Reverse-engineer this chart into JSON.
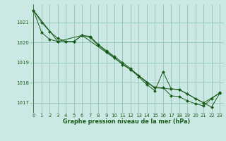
{
  "bg_color": "#cce8e4",
  "grid_color": "#99ccbb",
  "line_color": "#1a5c1a",
  "marker_color": "#1a5c1a",
  "xlabel": "Graphe pression niveau de la mer (hPa)",
  "xlabel_color": "#1a5c1a",
  "tick_color": "#1a5c1a",
  "ylim": [
    1016.5,
    1021.9
  ],
  "xlim": [
    -0.5,
    23.5
  ],
  "yticks": [
    1017,
    1018,
    1019,
    1020,
    1021
  ],
  "xticks": [
    0,
    1,
    2,
    3,
    4,
    5,
    6,
    7,
    8,
    9,
    10,
    11,
    12,
    13,
    14,
    15,
    16,
    17,
    18,
    19,
    20,
    21,
    22,
    23
  ],
  "series1_x": [
    0,
    1,
    2,
    3,
    4,
    5,
    6,
    7,
    8,
    9,
    10,
    11,
    12,
    13,
    14,
    15,
    16,
    17,
    18,
    19,
    20,
    21,
    22,
    23
  ],
  "series1_y": [
    1021.6,
    1021.0,
    1020.55,
    1020.2,
    1020.05,
    1020.05,
    1020.35,
    1020.3,
    1019.9,
    1019.6,
    1019.3,
    1019.0,
    1018.7,
    1018.35,
    1018.0,
    1017.75,
    1017.75,
    1017.35,
    1017.3,
    1017.1,
    1016.95,
    1016.85,
    1017.2,
    1017.5
  ],
  "series2_x": [
    0,
    1,
    2,
    3,
    4,
    5,
    6,
    7,
    8,
    9,
    10,
    11,
    12,
    13,
    14,
    15,
    16,
    17,
    18,
    19,
    20,
    21,
    22,
    23
  ],
  "series2_y": [
    1021.6,
    1020.5,
    1020.15,
    1020.05,
    1020.05,
    1020.05,
    1020.35,
    1020.25,
    1019.85,
    1019.55,
    1019.25,
    1018.9,
    1018.65,
    1018.3,
    1017.9,
    1017.6,
    1018.55,
    1017.7,
    1017.65,
    1017.45,
    1017.2,
    1017.0,
    1016.78,
    1017.48
  ],
  "series3_x": [
    0,
    3,
    6,
    9,
    12,
    15,
    18,
    21,
    23
  ],
  "series3_y": [
    1021.6,
    1020.05,
    1020.35,
    1019.5,
    1018.65,
    1017.75,
    1017.65,
    1017.0,
    1017.48
  ]
}
